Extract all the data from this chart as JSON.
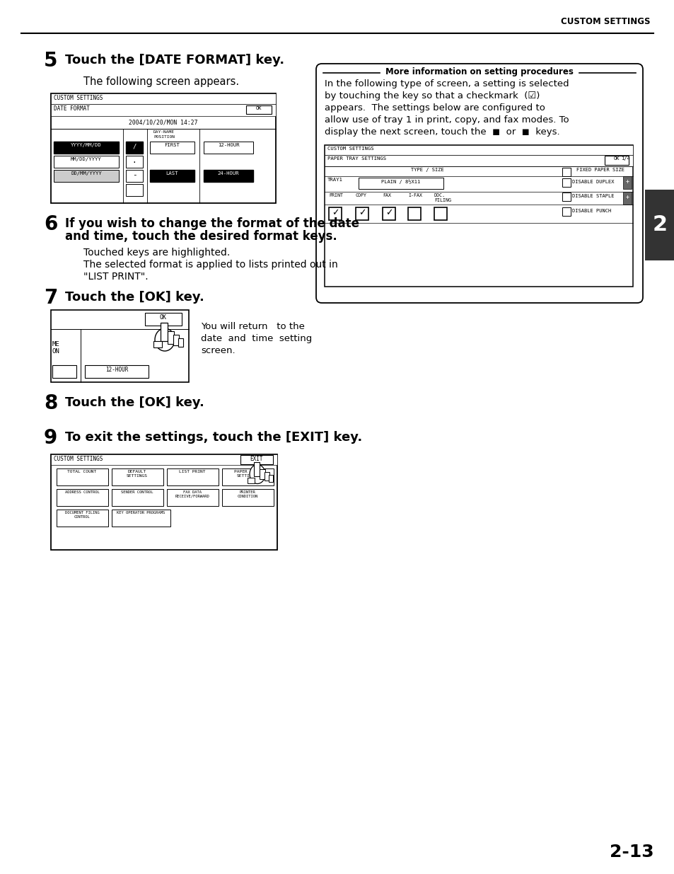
{
  "page_title": "CUSTOM SETTINGS",
  "page_number": "2-13",
  "background_color": "#ffffff",
  "step5_num": "5",
  "step5_text": "Touch the [DATE FORMAT] key.",
  "step5_sub": "The following screen appears.",
  "step6_num": "6",
  "step6_text_1": "If you wish to change the format of the date",
  "step6_text_2": "and time, touch the desired format keys.",
  "step6_sub1": "Touched keys are highlighted.",
  "step6_sub2": "The selected format is applied to lists printed out in",
  "step6_sub3": "\"LIST PRINT\".",
  "step7_num": "7",
  "step7_text": "Touch the [OK] key.",
  "step7_desc1": "You will return   to the",
  "step7_desc2": "date  and  time  setting",
  "step7_desc3": "screen.",
  "step8_num": "8",
  "step8_text": "Touch the [OK] key.",
  "step9_num": "9",
  "step9_text": "To exit the settings, touch the [EXIT] key.",
  "sidebar_title": "More information on setting procedures",
  "sidebar_line1": "In the following type of screen, a setting is selected",
  "sidebar_line2": "by touching the key so that a checkmark  (☑)",
  "sidebar_line3": "appears.  The settings below are configured to",
  "sidebar_line4": "allow use of tray 1 in print, copy, and fax modes. To",
  "sidebar_line5": "display the next screen, touch the  ■  or  ■  keys."
}
